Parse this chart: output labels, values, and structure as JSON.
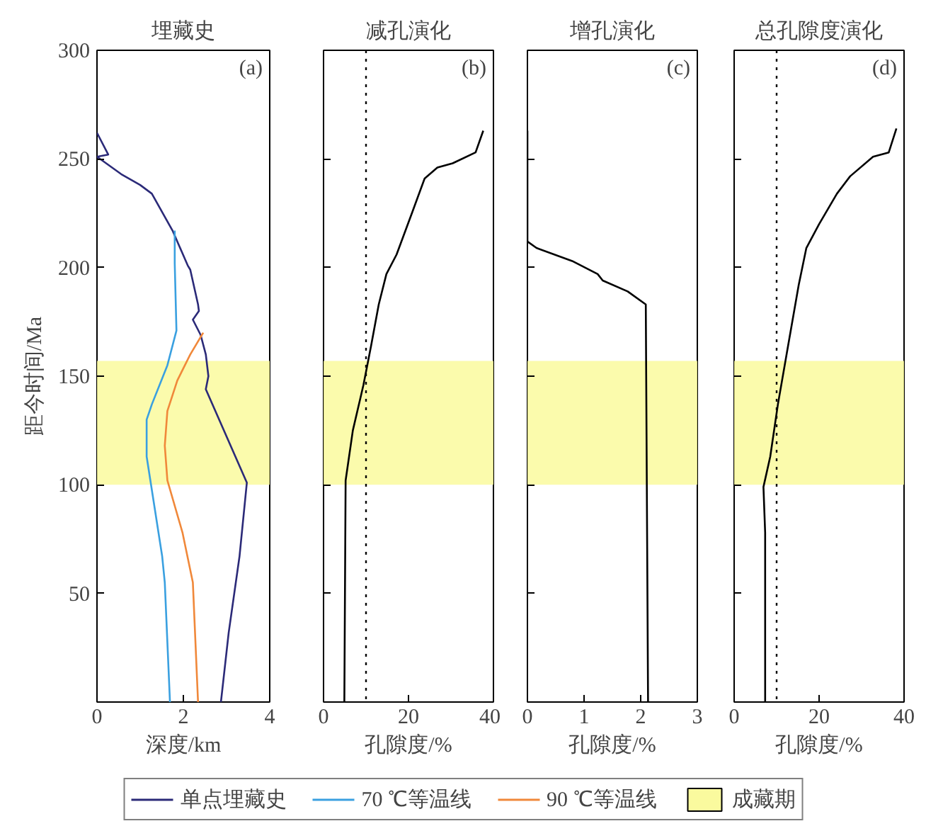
{
  "chart_data": [
    {
      "type": "line",
      "title": "埋藏史",
      "xlabel": "深度/km",
      "ylabel": "距今时间/Ma",
      "xlim": [
        0,
        4
      ],
      "xticks": [
        0,
        2,
        4
      ],
      "ylim": [
        0,
        300
      ],
      "yticks": [
        50,
        100,
        150,
        200,
        250,
        300
      ],
      "annotations": [
        "(a)"
      ],
      "legend": "bottom",
      "bands": [
        {
          "axis": "y",
          "from": 100,
          "to": 157,
          "label": "成藏期",
          "color": "#fafa9e"
        }
      ],
      "series": [
        {
          "name": "单点埋藏史",
          "color": "#2b2a78",
          "x": [
            0,
            0.26,
            0,
            0.56,
            1.0,
            1.27,
            1.75,
            2.1,
            2.16,
            2.34,
            2.36,
            2.22,
            2.4,
            2.52,
            2.58,
            2.52,
            3.47,
            3.3,
            3.05,
            2.87
          ],
          "values": [
            262,
            252,
            251,
            243,
            238,
            234,
            217,
            201,
            199,
            183,
            180,
            176,
            169,
            160,
            150,
            144,
            101,
            67,
            32,
            0
          ]
        },
        {
          "name": "70 ℃等温线",
          "color": "#3aa0e0",
          "x": [
            1.8,
            1.8,
            1.84,
            1.63,
            1.27,
            1.15,
            1.15,
            1.33,
            1.51,
            1.57,
            1.69
          ],
          "values": [
            217,
            202,
            171,
            155,
            137,
            130,
            113,
            90,
            67,
            55,
            0
          ]
        },
        {
          "name": "90 ℃等温线",
          "color": "#f0883a",
          "x": [
            2.46,
            2.16,
            1.86,
            1.63,
            1.57,
            1.63,
            1.98,
            2.22,
            2.34
          ],
          "values": [
            170,
            160,
            148,
            134,
            118,
            102,
            78,
            55,
            0
          ]
        }
      ]
    },
    {
      "type": "line",
      "title": "减孔演化",
      "xlabel": "孔隙度/%",
      "xlim": [
        0,
        40
      ],
      "xticks": [
        0,
        20,
        40
      ],
      "ylim": [
        0,
        300
      ],
      "yticks": [
        50,
        100,
        150,
        200,
        250,
        300
      ],
      "tick_labels": "x",
      "annotations": [
        "(b)"
      ],
      "bands": [
        {
          "axis": "y",
          "from": 100,
          "to": 157,
          "color": "#fafa9e"
        }
      ],
      "ref_lines": [
        {
          "axis": "x",
          "value": 10,
          "line_style": "dotted"
        }
      ],
      "series": [
        {
          "color": "#000000",
          "x": [
            37.6,
            35.8,
            30.4,
            26.8,
            23.8,
            20.8,
            17.2,
            14.8,
            13,
            11.2,
            9.4,
            6.9,
            5.2,
            4.9
          ],
          "values": [
            263,
            253,
            248,
            246,
            241,
            225,
            206,
            197,
            183,
            164,
            146,
            125,
            102,
            0
          ]
        }
      ]
    },
    {
      "type": "line",
      "title": "增孔演化",
      "xlabel": "孔隙度/%",
      "xlim": [
        0,
        3
      ],
      "xticks": [
        0,
        1,
        2,
        3
      ],
      "ylim": [
        0,
        300
      ],
      "yticks": [
        50,
        100,
        150,
        200,
        250,
        300
      ],
      "tick_labels": "x",
      "annotations": [
        "(c)"
      ],
      "bands": [
        {
          "axis": "y",
          "from": 100,
          "to": 157,
          "color": "#fafa9e"
        }
      ],
      "series": [
        {
          "color": "#000000",
          "x": [
            0,
            0,
            0.16,
            0.79,
            1.24,
            1.33,
            1.77,
            2.09,
            2.13
          ],
          "values": [
            263,
            212,
            209,
            203,
            197,
            194,
            189,
            183,
            0
          ]
        }
      ]
    },
    {
      "type": "line",
      "title": "总孔隙度演化",
      "xlabel": "孔隙度/%",
      "xlim": [
        0,
        40
      ],
      "xticks": [
        0,
        20,
        40
      ],
      "ylim": [
        0,
        300
      ],
      "yticks": [
        50,
        100,
        150,
        200,
        250,
        300
      ],
      "tick_labels": "x",
      "annotations": [
        "(d)"
      ],
      "bands": [
        {
          "axis": "y",
          "from": 100,
          "to": 157,
          "color": "#fafa9e"
        }
      ],
      "ref_lines": [
        {
          "axis": "x",
          "value": 10,
          "line_style": "dotted"
        }
      ],
      "series": [
        {
          "color": "#000000",
          "x": [
            38.2,
            36.4,
            32.7,
            27.3,
            24.2,
            20,
            17,
            15.2,
            12.7,
            10.3,
            8.5,
            6.9,
            7.3,
            7.3
          ],
          "values": [
            264,
            253,
            251,
            242,
            234,
            220,
            209,
            192,
            164,
            137,
            113,
            99,
            78,
            0
          ]
        }
      ]
    }
  ]
}
